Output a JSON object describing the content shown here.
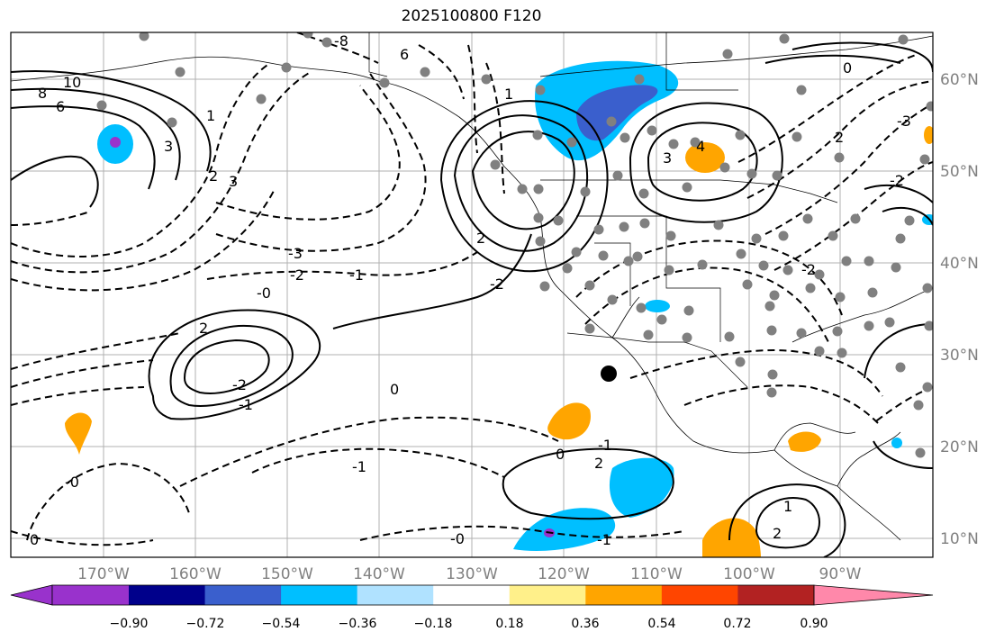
{
  "title": "2025100800 F120",
  "map": {
    "lon_labels": [
      "170°W",
      "160°W",
      "150°W",
      "140°W",
      "130°W",
      "120°W",
      "110°W",
      "100°W",
      "90°W"
    ],
    "lat_labels": [
      "60°N",
      "50°N",
      "40°N",
      "30°N",
      "20°N",
      "10°N"
    ],
    "contour_labels": [
      "10",
      "8",
      "6",
      "3",
      "1",
      "2",
      "3",
      "-3",
      "-2",
      "-1",
      "-0",
      "2",
      "-2",
      "-1",
      "-0",
      "0",
      "-1",
      "0",
      "-0",
      "2",
      "-2",
      "2",
      "-1",
      "-1",
      "1",
      "6",
      "-8",
      "0",
      "3",
      "4",
      "2",
      "-2",
      "-3",
      "0",
      "-2",
      "1",
      "2"
    ],
    "marker_color": "#000000",
    "station_color": "#808080"
  },
  "colorbar": {
    "colors": [
      "#9932cc",
      "#00008b",
      "#3a5fcd",
      "#00bfff",
      "#b0e2ff",
      "#ffffff",
      "#fff08a",
      "#ffa500",
      "#ff4500",
      "#b22222",
      "#ff88aa"
    ],
    "tick_labels": [
      "−0.90",
      "−0.72",
      "−0.54",
      "−0.36",
      "−0.18",
      "0.18",
      "0.36",
      "0.54",
      "0.72",
      "0.90"
    ]
  }
}
